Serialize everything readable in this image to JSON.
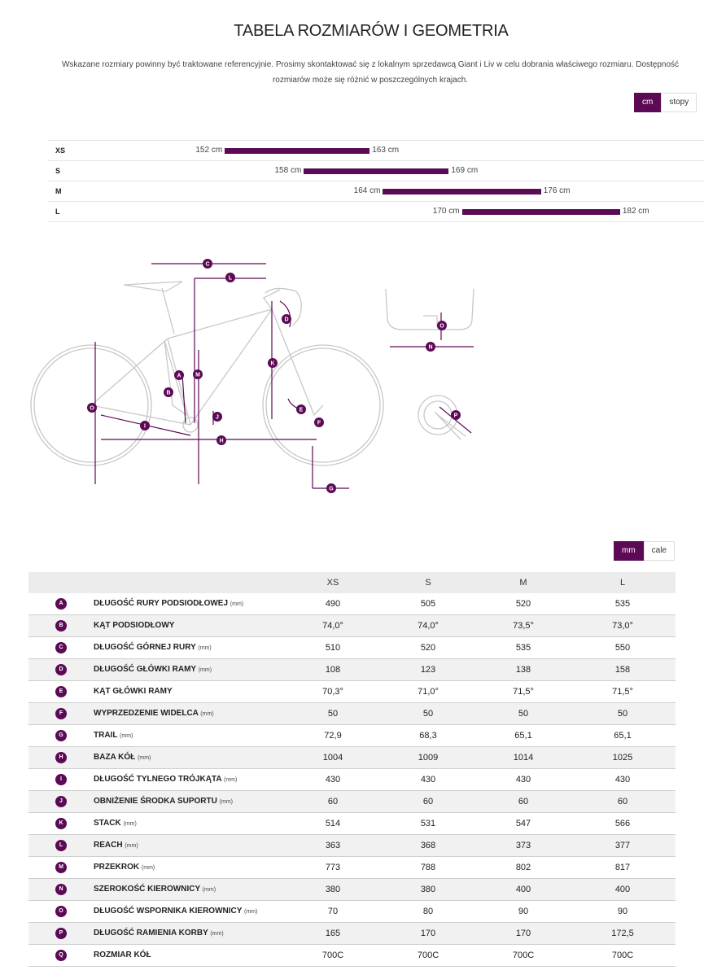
{
  "header": {
    "title": "TABELA ROZMIARÓW I GEOMETRIA",
    "intro": "Wskazane rozmiary powinny być traktowane referencyjnie. Prosimy skontaktować się z lokalnym sprzedawcą Giant i Liv w celu dobrania właściwego rozmiaru. Dostępność rozmiarów może się różnić w poszczególnych krajach."
  },
  "height_units": {
    "active": "cm",
    "other": "stopy"
  },
  "size_chart": {
    "range_min_cm": 146,
    "range_max_cm": 188,
    "rows": [
      {
        "size": "XS",
        "min": "152 cm",
        "max": "163 cm",
        "min_value": 152,
        "max_value": 163
      },
      {
        "size": "S",
        "min": "158 cm",
        "max": "169 cm",
        "min_value": 158,
        "max_value": 169
      },
      {
        "size": "M",
        "min": "164 cm",
        "max": "176 cm",
        "min_value": 164,
        "max_value": 176
      },
      {
        "size": "L",
        "min": "170 cm",
        "max": "182 cm",
        "min_value": 170,
        "max_value": 182
      }
    ]
  },
  "diagram_labels": [
    "A",
    "B",
    "C",
    "D",
    "E",
    "F",
    "G",
    "H",
    "I",
    "J",
    "K",
    "L",
    "M",
    "N",
    "O",
    "P",
    "Q"
  ],
  "geometry_units": {
    "active": "mm",
    "other": "cale"
  },
  "geometry": {
    "columns": [
      "XS",
      "S",
      "M",
      "L"
    ],
    "rows": [
      {
        "letter": "A",
        "name": "DŁUGOŚĆ RURY PODSIODŁOWEJ",
        "unit": "(mm)",
        "values": [
          "490",
          "505",
          "520",
          "535"
        ]
      },
      {
        "letter": "B",
        "name": "KĄT PODSIODŁOWY",
        "unit": "",
        "values": [
          "74,0°",
          "74,0°",
          "73,5°",
          "73,0°"
        ]
      },
      {
        "letter": "C",
        "name": "DŁUGOŚĆ GÓRNEJ RURY",
        "unit": "(mm)",
        "values": [
          "510",
          "520",
          "535",
          "550"
        ]
      },
      {
        "letter": "D",
        "name": "DŁUGOŚĆ GŁÓWKI RAMY",
        "unit": "(mm)",
        "values": [
          "108",
          "123",
          "138",
          "158"
        ]
      },
      {
        "letter": "E",
        "name": "KĄT GŁÓWKI RAMY",
        "unit": "",
        "values": [
          "70,3°",
          "71,0°",
          "71,5°",
          "71,5°"
        ]
      },
      {
        "letter": "F",
        "name": "WYPRZEDZENIE WIDELCA",
        "unit": "(mm)",
        "values": [
          "50",
          "50",
          "50",
          "50"
        ]
      },
      {
        "letter": "G",
        "name": "TRAIL",
        "unit": "(mm)",
        "values": [
          "72,9",
          "68,3",
          "65,1",
          "65,1"
        ]
      },
      {
        "letter": "H",
        "name": "BAZA KÓŁ",
        "unit": "(mm)",
        "values": [
          "1004",
          "1009",
          "1014",
          "1025"
        ]
      },
      {
        "letter": "I",
        "name": "DŁUGOŚĆ TYLNEGO TRÓJKĄTA",
        "unit": "(mm)",
        "values": [
          "430",
          "430",
          "430",
          "430"
        ]
      },
      {
        "letter": "J",
        "name": "OBNIŻENIE ŚRODKA SUPORTU",
        "unit": "(mm)",
        "values": [
          "60",
          "60",
          "60",
          "60"
        ]
      },
      {
        "letter": "K",
        "name": "STACK",
        "unit": "(mm)",
        "values": [
          "514",
          "531",
          "547",
          "566"
        ]
      },
      {
        "letter": "L",
        "name": "REACH",
        "unit": "(mm)",
        "values": [
          "363",
          "368",
          "373",
          "377"
        ]
      },
      {
        "letter": "M",
        "name": "PRZEKROK",
        "unit": "(mm)",
        "values": [
          "773",
          "788",
          "802",
          "817"
        ]
      },
      {
        "letter": "N",
        "name": "SZEROKOŚĆ KIEROWNICY",
        "unit": "(mm)",
        "values": [
          "380",
          "380",
          "400",
          "400"
        ]
      },
      {
        "letter": "O",
        "name": "DŁUGOŚĆ WSPORNIKA KIEROWNICY",
        "unit": "(mm)",
        "values": [
          "70",
          "80",
          "90",
          "90"
        ]
      },
      {
        "letter": "P",
        "name": "DŁUGOŚĆ RAMIENIA KORBY",
        "unit": "(mm)",
        "values": [
          "165",
          "170",
          "170",
          "172,5"
        ]
      },
      {
        "letter": "Q",
        "name": "ROZMIAR KÓŁ",
        "unit": "",
        "values": [
          "700C",
          "700C",
          "700C",
          "700C"
        ]
      }
    ]
  }
}
